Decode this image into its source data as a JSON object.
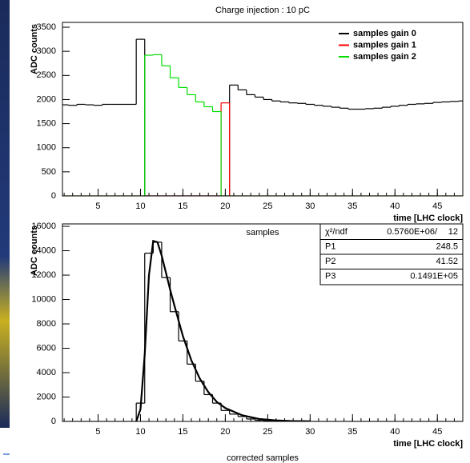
{
  "chart_data": [
    {
      "type": "step",
      "title": "Charge injection : 10 pC",
      "ylabel": "ADC counts",
      "xlabel": "time [LHC clock]",
      "caption": "samples",
      "x": [
        1,
        2,
        3,
        4,
        5,
        6,
        7,
        8,
        9,
        10,
        11,
        12,
        13,
        14,
        15,
        16,
        17,
        18,
        19,
        20,
        21,
        22,
        23,
        24,
        25,
        26,
        27,
        28,
        29,
        30,
        31,
        32,
        33,
        34,
        35,
        36,
        37,
        38,
        39,
        40,
        41,
        42,
        43,
        44,
        45,
        46,
        47,
        48
      ],
      "series": [
        {
          "name": "samples gain 0",
          "color": "#000000",
          "values": [
            1890,
            1880,
            1900,
            1890,
            1880,
            1900,
            1900,
            1900,
            1900,
            3250,
            0,
            0,
            0,
            0,
            0,
            0,
            0,
            0,
            0,
            0,
            2300,
            2200,
            2100,
            2050,
            2000,
            1970,
            1950,
            1930,
            1920,
            1900,
            1880,
            1860,
            1840,
            1820,
            1800,
            1800,
            1810,
            1820,
            1840,
            1860,
            1880,
            1900,
            1910,
            1920,
            1940,
            1950,
            1960,
            1970
          ]
        },
        {
          "name": "samples gain 1",
          "color": "#ff0000",
          "values": [
            0,
            0,
            0,
            0,
            0,
            0,
            0,
            0,
            0,
            0,
            0,
            0,
            0,
            0,
            0,
            0,
            0,
            0,
            0,
            1930,
            0,
            0,
            0,
            0,
            0,
            0,
            0,
            0,
            0,
            0,
            0,
            0,
            0,
            0,
            0,
            0,
            0,
            0,
            0,
            0,
            0,
            0,
            0,
            0,
            0,
            0,
            0,
            0
          ]
        },
        {
          "name": "samples gain 2",
          "color": "#00dd00",
          "values": [
            0,
            0,
            0,
            0,
            0,
            0,
            0,
            0,
            0,
            0,
            2920,
            2930,
            2700,
            2450,
            2250,
            2100,
            1950,
            1850,
            1750,
            0,
            0,
            0,
            0,
            0,
            0,
            0,
            0,
            0,
            0,
            0,
            0,
            0,
            0,
            0,
            0,
            0,
            0,
            0,
            0,
            0,
            0,
            0,
            0,
            0,
            0,
            0,
            0,
            0
          ]
        }
      ],
      "xlim": [
        0.8,
        48
      ],
      "ylim": [
        0,
        3600
      ],
      "xticks": [
        5,
        10,
        15,
        20,
        25,
        30,
        35,
        40,
        45
      ],
      "yticks": [
        0,
        500,
        1000,
        1500,
        2000,
        2500,
        3000,
        3500
      ],
      "legend": "upper right"
    },
    {
      "type": "step",
      "ylabel": "ADC counts",
      "xlabel": "time [LHC clock]",
      "caption": "corrected samples",
      "x": [
        1,
        2,
        3,
        4,
        5,
        6,
        7,
        8,
        9,
        10,
        11,
        12,
        13,
        14,
        15,
        16,
        17,
        18,
        19,
        20,
        21,
        22,
        23,
        24,
        25,
        26,
        27,
        28,
        29,
        30,
        31,
        32,
        33,
        34,
        35,
        36,
        37,
        38,
        39,
        40,
        41,
        42,
        43,
        44,
        45,
        46,
        47,
        48
      ],
      "series": [
        {
          "color": "#000000",
          "values": [
            0,
            0,
            0,
            0,
            0,
            0,
            0,
            0,
            0,
            1500,
            13800,
            14700,
            11800,
            9000,
            6600,
            4700,
            3300,
            2200,
            1500,
            900,
            600,
            400,
            200,
            100,
            50,
            0,
            0,
            0,
            0,
            0,
            0,
            0,
            0,
            0,
            0,
            0,
            0,
            0,
            0,
            0,
            0,
            0,
            0,
            0,
            0,
            0,
            0,
            0
          ]
        },
        {
          "color": "#000000",
          "x": [
            9.5,
            10,
            10.5,
            11,
            11.5,
            12,
            12.5,
            13,
            13.5,
            14,
            15,
            16,
            17,
            18,
            19,
            20,
            22,
            24,
            26,
            28,
            30
          ],
          "values": [
            0,
            1000,
            5500,
            12000,
            14800,
            14700,
            13600,
            12200,
            10800,
            9500,
            7000,
            5000,
            3500,
            2400,
            1600,
            1100,
            500,
            200,
            80,
            30,
            10
          ]
        }
      ],
      "xlim": [
        0.8,
        48
      ],
      "ylim": [
        0,
        16200
      ],
      "xticks": [
        5,
        10,
        15,
        20,
        25,
        30,
        35,
        40,
        45
      ],
      "yticks": [
        0,
        2000,
        4000,
        6000,
        8000,
        10000,
        12000,
        14000,
        16000
      ],
      "stats": [
        [
          "χ²/ndf",
          "0.5760E+06/",
          "12"
        ],
        [
          "P1",
          "248.5"
        ],
        [
          "P2",
          "41.52"
        ],
        [
          "P3",
          "0.1491E+05"
        ]
      ]
    }
  ]
}
